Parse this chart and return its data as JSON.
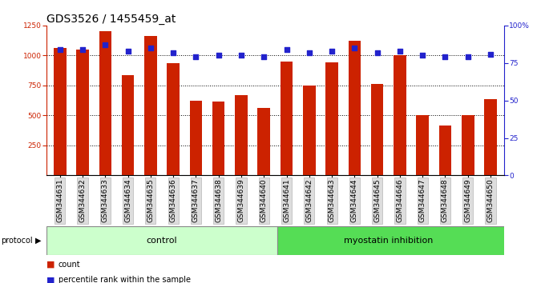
{
  "title": "GDS3526 / 1455459_at",
  "samples": [
    "GSM344631",
    "GSM344632",
    "GSM344633",
    "GSM344634",
    "GSM344635",
    "GSM344636",
    "GSM344637",
    "GSM344638",
    "GSM344639",
    "GSM344640",
    "GSM344641",
    "GSM344642",
    "GSM344643",
    "GSM344644",
    "GSM344645",
    "GSM344646",
    "GSM344647",
    "GSM344648",
    "GSM344649",
    "GSM344650"
  ],
  "counts": [
    1065,
    1050,
    1200,
    835,
    1165,
    935,
    620,
    615,
    670,
    560,
    950,
    750,
    940,
    1120,
    760,
    1005,
    500,
    415,
    505,
    635
  ],
  "percentiles": [
    84,
    84,
    87,
    83,
    85,
    82,
    79,
    80,
    80,
    79,
    84,
    82,
    83,
    85,
    82,
    83,
    80,
    79,
    79,
    81
  ],
  "bar_color": "#cc2200",
  "dot_color": "#2222cc",
  "control_count": 10,
  "control_label": "control",
  "treatment_label": "myostatin inhibition",
  "control_bg": "#ccffcc",
  "treatment_bg": "#55dd55",
  "protocol_label": "protocol",
  "legend_count": "count",
  "legend_pct": "percentile rank within the sample",
  "ylim_left": [
    0,
    1250
  ],
  "ylim_right": [
    0,
    100
  ],
  "yticks_left": [
    250,
    500,
    750,
    1000,
    1250
  ],
  "yticks_right": [
    0,
    25,
    50,
    75,
    100
  ],
  "grid_lines": [
    250,
    500,
    750,
    1000
  ],
  "title_fontsize": 10,
  "tick_fontsize": 6.5,
  "label_fontsize": 8,
  "bg_color": "#ffffff"
}
